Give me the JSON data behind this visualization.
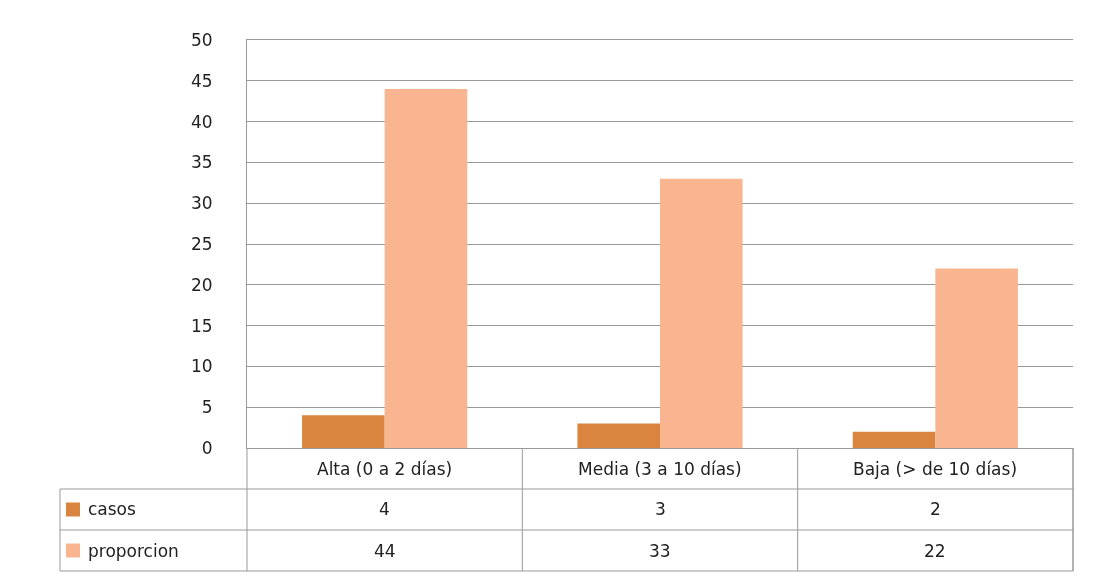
{
  "chart_data": {
    "type": "bar",
    "categories": [
      "Alta (0 a 2 días)",
      "Media (3 a 10 días)",
      "Baja (> de 10 días)"
    ],
    "series": [
      {
        "name": "casos",
        "color": "#d9843f",
        "values": [
          4,
          3,
          2
        ]
      },
      {
        "name": "proporcion",
        "color": "#f9b590",
        "values": [
          44,
          33,
          22
        ]
      }
    ],
    "ylim": [
      0,
      50
    ],
    "yticks": [
      0,
      5,
      10,
      15,
      20,
      25,
      30,
      35,
      40,
      45,
      50
    ],
    "grid": "y",
    "legend": "bottom left",
    "data_labels": true
  }
}
